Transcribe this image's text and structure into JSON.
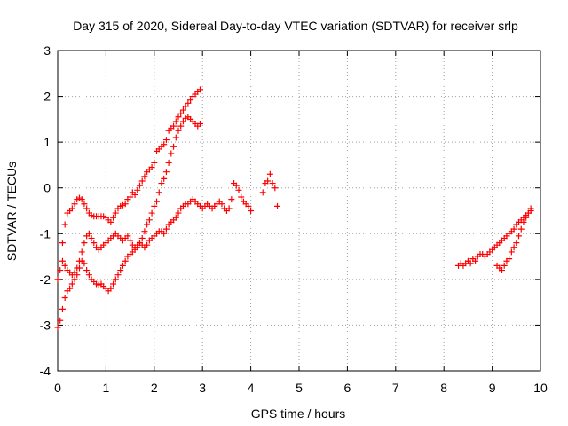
{
  "chart_data": {
    "type": "scatter",
    "title": "Day 315 of 2020, Sidereal Day-to-day VTEC variation (SDTVAR) for receiver srlp",
    "xlabel": "GPS time / hours",
    "ylabel": "SDTVAR / TECUs",
    "xlim": [
      0,
      10
    ],
    "ylim": [
      -4,
      3
    ],
    "x_ticks": [
      "0",
      "1",
      "2",
      "3",
      "4",
      "5",
      "6",
      "7",
      "8",
      "9",
      "10"
    ],
    "y_ticks": [
      "-4",
      "-3",
      "-2",
      "-1",
      "0",
      "1",
      "2",
      "3"
    ],
    "grid": true,
    "marker": "plus",
    "color": "#ff0000",
    "tracks": [
      {
        "x": [
          0.0,
          0.05,
          0.1,
          0.15,
          0.2,
          0.25,
          0.3,
          0.35,
          0.4,
          0.45,
          0.5,
          0.55,
          0.6,
          0.65,
          0.7,
          0.75,
          0.8,
          0.85,
          0.9,
          0.95,
          1.0,
          1.05,
          1.1,
          1.15,
          1.2,
          1.25,
          1.3,
          1.35,
          1.4,
          1.45,
          1.5,
          1.55,
          1.6,
          1.65,
          1.7,
          1.75,
          1.8,
          1.85,
          1.9,
          1.95,
          2.0,
          2.05,
          2.1,
          2.15,
          2.2,
          2.25,
          2.3,
          2.35,
          2.4,
          2.45,
          2.5,
          2.55,
          2.6,
          2.65,
          2.7,
          2.75,
          2.8,
          2.85,
          2.9,
          2.95
        ],
        "y": [
          -2.0,
          -1.8,
          -1.2,
          -0.8,
          -0.55,
          -0.5,
          -0.45,
          -0.35,
          -0.25,
          -0.22,
          -0.25,
          -0.35,
          -0.45,
          -0.55,
          -0.6,
          -0.62,
          -0.62,
          -0.62,
          -0.62,
          -0.62,
          -0.65,
          -0.7,
          -0.75,
          -0.65,
          -0.55,
          -0.45,
          -0.4,
          -0.38,
          -0.35,
          -0.25,
          -0.2,
          -0.1,
          -0.15,
          -0.05,
          0.05,
          0.15,
          0.25,
          0.35,
          0.4,
          0.45,
          0.55,
          0.8,
          0.85,
          0.9,
          0.95,
          1.05,
          1.25,
          1.3,
          1.35,
          1.45,
          1.55,
          1.62,
          1.7,
          1.78,
          1.85,
          1.92,
          2.0,
          2.05,
          2.1,
          2.15
        ]
      },
      {
        "x": [
          0.0,
          0.05,
          0.1,
          0.15,
          0.2,
          0.25,
          0.3,
          0.35,
          0.4,
          0.45,
          0.5,
          0.55,
          0.6,
          0.65,
          0.7,
          0.75,
          0.8,
          0.85,
          0.9,
          0.95,
          1.0,
          1.05,
          1.1,
          1.15,
          1.2,
          1.25,
          1.3,
          1.35,
          1.4,
          1.45,
          1.5,
          1.55,
          1.6,
          1.65,
          1.7,
          1.75,
          1.8,
          1.85,
          1.9,
          1.95,
          2.0,
          2.05,
          2.1,
          2.15,
          2.2,
          2.25,
          2.3,
          2.35,
          2.4,
          2.45,
          2.5,
          2.55,
          2.6,
          2.65,
          2.7,
          2.75,
          2.8,
          2.85,
          2.9,
          2.95
        ],
        "y": [
          -3.05,
          -2.9,
          -2.65,
          -2.4,
          -2.25,
          -2.2,
          -2.1,
          -2.0,
          -1.9,
          -1.75,
          -1.6,
          -1.65,
          -1.8,
          -1.9,
          -2.0,
          -2.05,
          -2.1,
          -2.12,
          -2.1,
          -2.15,
          -2.2,
          -2.25,
          -2.2,
          -2.1,
          -2.0,
          -1.9,
          -1.8,
          -1.7,
          -1.6,
          -1.5,
          -1.45,
          -1.4,
          -1.35,
          -1.3,
          -1.2,
          -1.1,
          -0.95,
          -0.8,
          -0.7,
          -0.55,
          -0.4,
          -0.3,
          -0.1,
          0.1,
          0.2,
          0.35,
          0.55,
          0.75,
          0.9,
          1.1,
          1.25,
          1.35,
          1.45,
          1.52,
          1.55,
          1.5,
          1.45,
          1.4,
          1.35,
          1.4
        ]
      },
      {
        "x": [
          0.1,
          0.15,
          0.2,
          0.25,
          0.3,
          0.35,
          0.4,
          0.45,
          0.5,
          0.55,
          0.6,
          0.65,
          0.7,
          0.75,
          0.8,
          0.85,
          0.9,
          0.95,
          1.0,
          1.05,
          1.1,
          1.15,
          1.2,
          1.25,
          1.3,
          1.35,
          1.4,
          1.45,
          1.5,
          1.55,
          1.6,
          1.65,
          1.7,
          1.75,
          1.8,
          1.85,
          1.9,
          1.95,
          2.0,
          2.05,
          2.1,
          2.15,
          2.2,
          2.25,
          2.3,
          2.35,
          2.4,
          2.45,
          2.5,
          2.55,
          2.6,
          2.65,
          2.7,
          2.75,
          2.8,
          2.85,
          2.9,
          2.95,
          3.0,
          3.05,
          3.1,
          3.15,
          3.2,
          3.25,
          3.3,
          3.35,
          3.4,
          3.45,
          3.5,
          3.55,
          3.6,
          3.65,
          3.7,
          3.75,
          3.8,
          3.85,
          3.9,
          3.95,
          4.0
        ],
        "y": [
          -1.6,
          -1.7,
          -1.8,
          -1.85,
          -1.9,
          -1.85,
          -1.75,
          -1.6,
          -1.4,
          -1.2,
          -1.05,
          -1.0,
          -1.1,
          -1.2,
          -1.3,
          -1.35,
          -1.3,
          -1.25,
          -1.2,
          -1.15,
          -1.1,
          -1.05,
          -1.0,
          -1.05,
          -1.1,
          -1.15,
          -1.1,
          -1.05,
          -1.15,
          -1.25,
          -1.3,
          -1.25,
          -1.2,
          -1.25,
          -1.3,
          -1.25,
          -1.15,
          -1.1,
          -1.05,
          -1.0,
          -0.95,
          -0.95,
          -1.0,
          -0.9,
          -0.8,
          -0.75,
          -0.7,
          -0.65,
          -0.55,
          -0.45,
          -0.4,
          -0.35,
          -0.35,
          -0.3,
          -0.25,
          -0.3,
          -0.35,
          -0.4,
          -0.45,
          -0.4,
          -0.35,
          -0.4,
          -0.45,
          -0.4,
          -0.35,
          -0.3,
          -0.35,
          -0.45,
          -0.5,
          -0.45,
          -0.25,
          0.1,
          0.05,
          -0.05,
          -0.2,
          -0.3,
          -0.35,
          -0.4,
          -0.5
        ]
      },
      {
        "x": [
          4.25,
          4.3,
          4.35,
          4.4,
          4.45,
          4.5,
          4.55
        ],
        "y": [
          -0.1,
          0.1,
          0.15,
          0.3,
          0.1,
          0.0,
          -0.4
        ]
      },
      {
        "x": [
          8.3,
          8.35,
          8.4,
          8.45,
          8.5,
          8.55,
          8.6,
          8.65,
          8.7,
          8.75,
          8.8,
          8.85,
          8.9,
          8.95,
          9.0,
          9.05,
          9.1,
          9.15,
          9.2,
          9.25,
          9.3,
          9.35,
          9.4,
          9.45,
          9.5,
          9.55,
          9.6,
          9.65,
          9.7,
          9.75,
          9.8
        ],
        "y": [
          -1.7,
          -1.65,
          -1.7,
          -1.65,
          -1.6,
          -1.65,
          -1.55,
          -1.6,
          -1.5,
          -1.45,
          -1.45,
          -1.5,
          -1.45,
          -1.4,
          -1.35,
          -1.3,
          -1.25,
          -1.2,
          -1.15,
          -1.1,
          -1.05,
          -1.0,
          -0.95,
          -0.9,
          -0.8,
          -0.75,
          -0.7,
          -0.65,
          -0.6,
          -0.55,
          -0.5
        ]
      },
      {
        "x": [
          9.1,
          9.15,
          9.2,
          9.25,
          9.3,
          9.35,
          9.4,
          9.45,
          9.5,
          9.55,
          9.6,
          9.65,
          9.7,
          9.75,
          9.8
        ],
        "y": [
          -1.7,
          -1.75,
          -1.8,
          -1.7,
          -1.6,
          -1.55,
          -1.4,
          -1.3,
          -1.2,
          -1.05,
          -0.9,
          -0.75,
          -0.65,
          -0.55,
          -0.45
        ]
      }
    ]
  }
}
